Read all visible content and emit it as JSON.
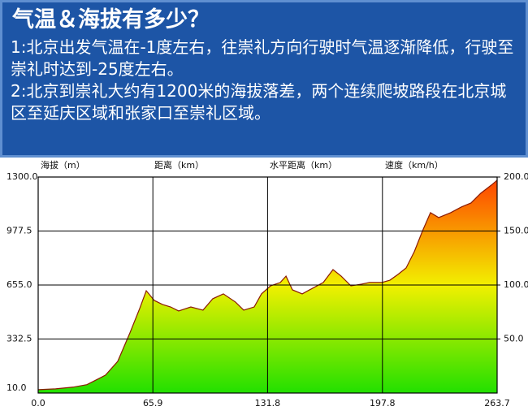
{
  "header": {
    "title": "气温＆海拔有多少？",
    "notes": [
      "1:北京出发气温在-1度左右，往崇礼方向行驶时气温逐渐降低，行驶至崇礼时达到-25度左右。",
      "2:北京到崇礼大约有1200米的海拔落差，两个连续爬坡路段在北京城区至延庆区域和张家口至崇礼区域。"
    ]
  },
  "chart_data": {
    "type": "area",
    "ylabel": "海拔（m）",
    "xlabel": "距离（km）",
    "x2label": "水平距离（km）",
    "y2label": "速度（km/h）",
    "x": [
      0,
      10,
      20,
      28,
      35,
      38.7,
      45.7,
      52.7,
      58.3,
      62.1,
      66.7,
      71.4,
      76.1,
      80.7,
      87.7,
      94.7,
      100.3,
      106.4,
      113.4,
      118.1,
      124.1,
      128.3,
      133.5,
      139.1,
      142.4,
      146.1,
      151.7,
      157.7,
      163.8,
      169.4,
      174.1,
      179.7,
      185.7,
      190.4,
      197.4,
      202.1,
      206.7,
      211.4,
      216.1,
      220.7,
      225.4,
      230.1,
      237.0,
      243.1,
      248.7,
      254.3,
      260.4,
      263.7
    ],
    "series": [
      {
        "values": [
          30,
          35,
          45,
          60,
          97,
          117,
          199,
          369,
          514,
          621,
          563,
          539,
          524,
          500,
          524,
          505,
          573,
          602,
          553,
          505,
          524,
          602,
          650,
          670,
          708,
          626,
          602,
          636,
          670,
          747,
          708,
          650,
          660,
          670,
          670,
          684,
          718,
          757,
          854,
          975,
          1087,
          1058,
          1087,
          1121,
          1145,
          1203,
          1252,
          1281
        ],
        "color": "#8b1a00",
        "gradient": [
          "#22e000",
          "#f2f000",
          "#ff4000"
        ]
      }
    ],
    "xlim": [
      0,
      263.7
    ],
    "xticks": [
      {
        "value": 0,
        "label": "0.0"
      },
      65.9,
      131.8,
      197.8,
      263.7
    ],
    "ylim": [
      10,
      1300
    ],
    "yticks": [
      {
        "value": 10,
        "label": "10.0"
      },
      332.5,
      {
        "value": 655,
        "label": "655.0"
      },
      977.5,
      {
        "value": 1300,
        "label": "1300.0"
      }
    ],
    "y2lim": [
      0,
      200
    ],
    "y2ticks": [
      {
        "value": 50,
        "label": "50.0"
      },
      {
        "value": 100,
        "label": "100.0"
      },
      {
        "value": 150,
        "label": "150.0"
      },
      {
        "value": 200,
        "label": "200.0"
      }
    ],
    "grid": true
  }
}
